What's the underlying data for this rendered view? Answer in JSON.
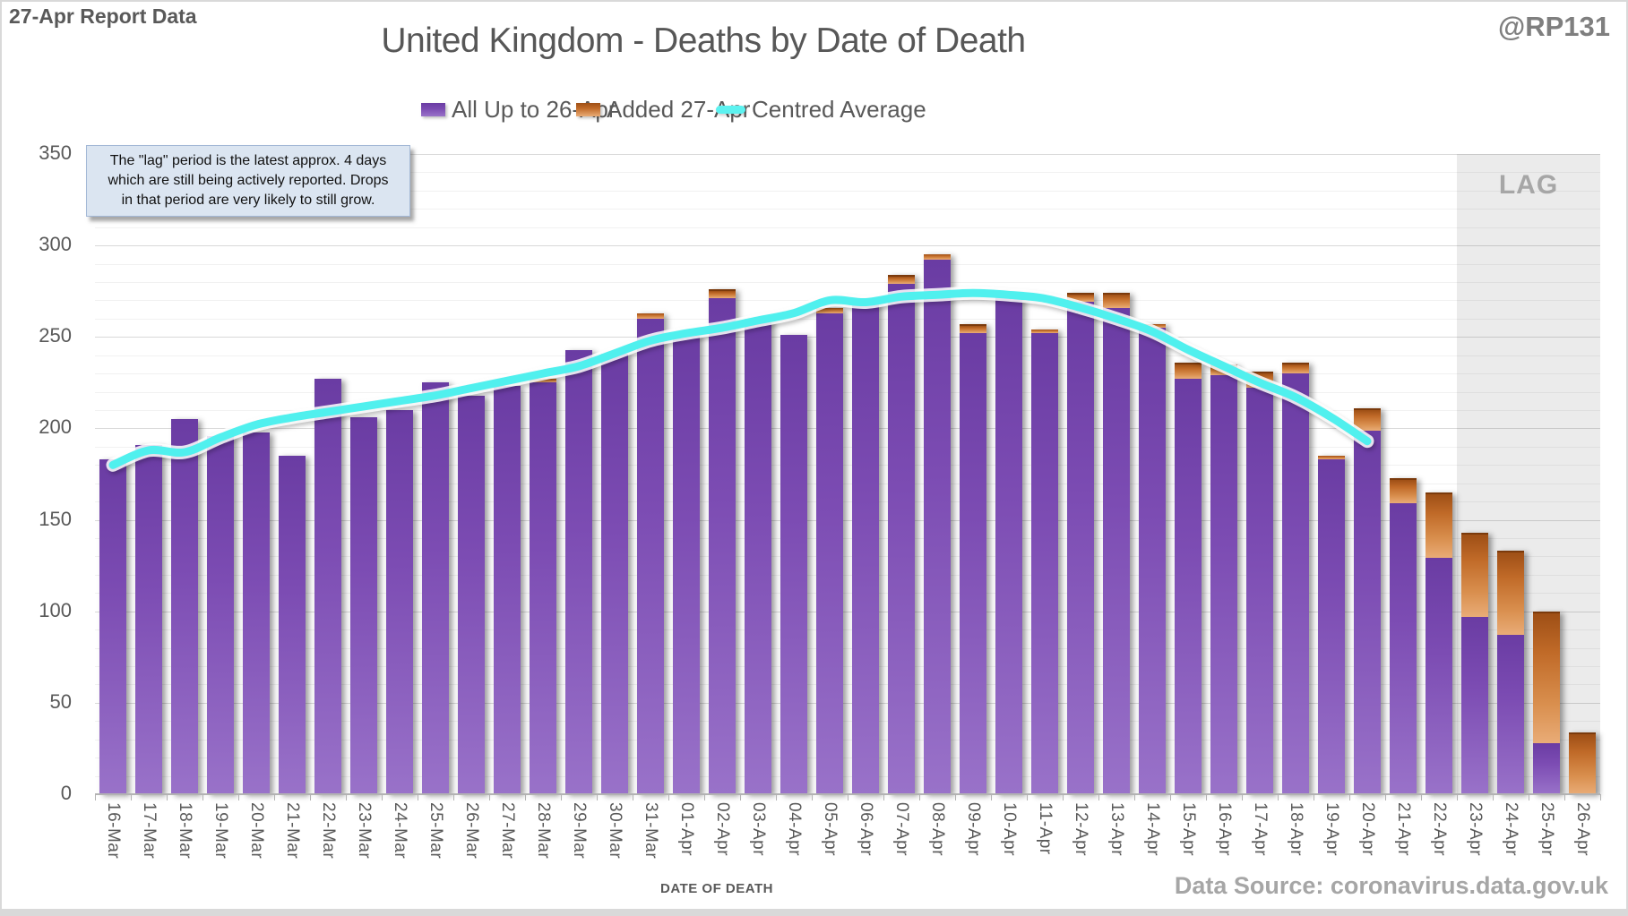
{
  "header": {
    "report_label": "27-Apr Report Data",
    "title": "United Kingdom - Deaths by Date of Death",
    "handle": "@RP131"
  },
  "legend": {
    "items": [
      {
        "label": "All Up to 26-Apr",
        "swatch": "purple-gradient"
      },
      {
        "label": "Added 27-Apr",
        "swatch": "orange-gradient"
      },
      {
        "label": "Centred Average",
        "swatch": "cyan-line"
      }
    ]
  },
  "annotation": {
    "lines": [
      "The \"lag\" period is the latest approx. 4 days",
      "which are still being actively reported. Drops",
      "in that period are very likely to still grow."
    ]
  },
  "lag": {
    "label": "LAG"
  },
  "axes": {
    "x_label": "DATE OF DEATH",
    "y_ticks": [
      0,
      50,
      100,
      150,
      200,
      250,
      300,
      350
    ],
    "y_max": 350
  },
  "footer": {
    "data_source": "Data Source: coronavirus.data.gov.uk"
  },
  "colors": {
    "bar_purple_top": "#6a3ca3",
    "bar_purple_bottom": "#9b76cb",
    "bar_orange_top": "#9e4f16",
    "bar_orange_bottom": "#e9ac77",
    "line_cyan": "#50f0ee",
    "lag_bg": "#ebebeb",
    "annotation_bg": "#dbe5f1",
    "text_gray": "#595959",
    "muted_gray": "#a6a6a6"
  },
  "chart_data": {
    "type": "bar",
    "stacked": true,
    "title": "United Kingdom - Deaths by Date of Death",
    "xlabel": "DATE OF DEATH",
    "ylim": [
      0,
      350
    ],
    "grid": "horizontal, minor every 10, major every 50",
    "legend_position": "top",
    "categories": [
      "16-Mar",
      "17-Mar",
      "18-Mar",
      "19-Mar",
      "20-Mar",
      "21-Mar",
      "22-Mar",
      "23-Mar",
      "24-Mar",
      "25-Mar",
      "26-Mar",
      "27-Mar",
      "28-Mar",
      "29-Mar",
      "30-Mar",
      "31-Mar",
      "01-Apr",
      "02-Apr",
      "03-Apr",
      "04-Apr",
      "05-Apr",
      "06-Apr",
      "07-Apr",
      "08-Apr",
      "09-Apr",
      "10-Apr",
      "11-Apr",
      "12-Apr",
      "13-Apr",
      "14-Apr",
      "15-Apr",
      "16-Apr",
      "17-Apr",
      "18-Apr",
      "19-Apr",
      "20-Apr",
      "21-Apr",
      "22-Apr",
      "23-Apr",
      "24-Apr",
      "25-Apr",
      "26-Apr"
    ],
    "series": [
      {
        "name": "All Up to 26-Apr",
        "type": "bar",
        "color": "#7a4bb0",
        "values": [
          183,
          191,
          205,
          196,
          198,
          185,
          227,
          206,
          210,
          225,
          218,
          223,
          225,
          243,
          241,
          260,
          252,
          272,
          258,
          251,
          263,
          269,
          280,
          292,
          253,
          272,
          252,
          270,
          267,
          255,
          228,
          230,
          223,
          231,
          183,
          200,
          160,
          130,
          98,
          88,
          29,
          0
        ]
      },
      {
        "name": "Added 27-Apr",
        "type": "bar",
        "color": "#c87434",
        "values": [
          0,
          0,
          0,
          0,
          0,
          0,
          0,
          0,
          0,
          0,
          0,
          0,
          2,
          0,
          0,
          3,
          0,
          4,
          2,
          0,
          3,
          0,
          4,
          3,
          4,
          1,
          2,
          4,
          7,
          2,
          8,
          5,
          8,
          5,
          2,
          11,
          13,
          35,
          45,
          45,
          71,
          34
        ]
      },
      {
        "name": "Centred Average",
        "type": "line",
        "color": "#50f0ee",
        "values": [
          180,
          188,
          187,
          195,
          202,
          206,
          209,
          212,
          215,
          218,
          222,
          226,
          230,
          234,
          241,
          248,
          252,
          255,
          259,
          263,
          270,
          269,
          272,
          273,
          274,
          273,
          271,
          266,
          260,
          253,
          243,
          234,
          225,
          217,
          206,
          193,
          null,
          null,
          null,
          null,
          null,
          null
        ]
      }
    ],
    "lag_region": {
      "from": "23-Apr",
      "to": "26-Apr"
    }
  }
}
